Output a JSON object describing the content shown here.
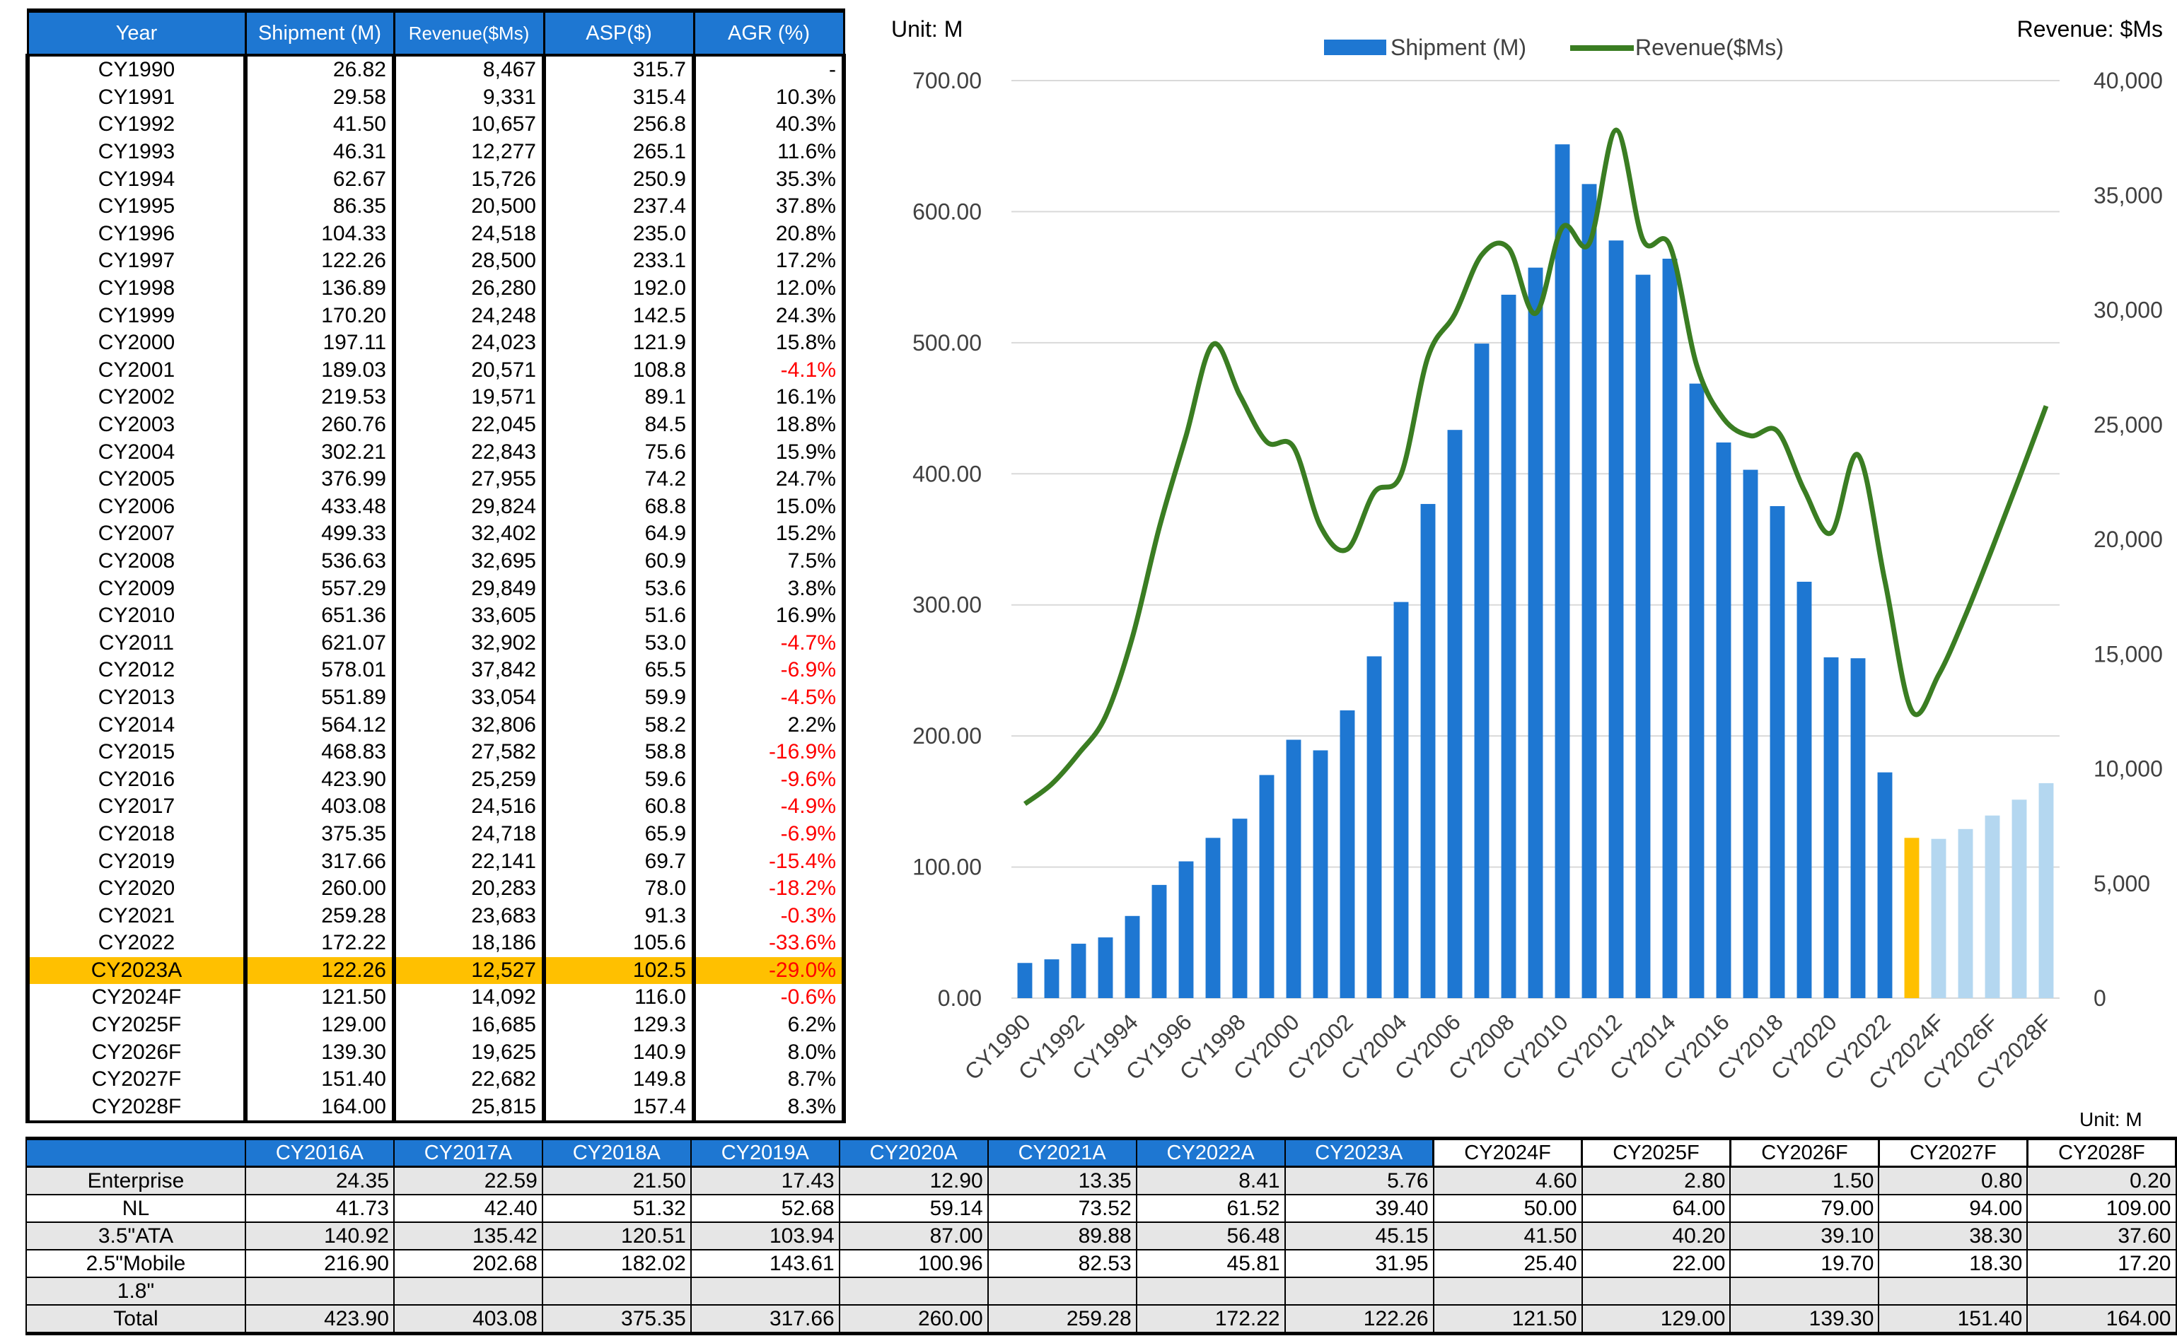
{
  "main_table": {
    "headers": [
      "Year",
      "Shipment (M)",
      "Revenue($Ms)",
      "ASP($)",
      "AGR (%)"
    ],
    "rows": [
      [
        "CY1990",
        "26.82",
        "8,467",
        "315.7",
        "-"
      ],
      [
        "CY1991",
        "29.58",
        "9,331",
        "315.4",
        "10.3%"
      ],
      [
        "CY1992",
        "41.50",
        "10,657",
        "256.8",
        "40.3%"
      ],
      [
        "CY1993",
        "46.31",
        "12,277",
        "265.1",
        "11.6%"
      ],
      [
        "CY1994",
        "62.67",
        "15,726",
        "250.9",
        "35.3%"
      ],
      [
        "CY1995",
        "86.35",
        "20,500",
        "237.4",
        "37.8%"
      ],
      [
        "CY1996",
        "104.33",
        "24,518",
        "235.0",
        "20.8%"
      ],
      [
        "CY1997",
        "122.26",
        "28,500",
        "233.1",
        "17.2%"
      ],
      [
        "CY1998",
        "136.89",
        "26,280",
        "192.0",
        "12.0%"
      ],
      [
        "CY1999",
        "170.20",
        "24,248",
        "142.5",
        "24.3%"
      ],
      [
        "CY2000",
        "197.11",
        "24,023",
        "121.9",
        "15.8%"
      ],
      [
        "CY2001",
        "189.03",
        "20,571",
        "108.8",
        "-4.1%"
      ],
      [
        "CY2002",
        "219.53",
        "19,571",
        "89.1",
        "16.1%"
      ],
      [
        "CY2003",
        "260.76",
        "22,045",
        "84.5",
        "18.8%"
      ],
      [
        "CY2004",
        "302.21",
        "22,843",
        "75.6",
        "15.9%"
      ],
      [
        "CY2005",
        "376.99",
        "27,955",
        "74.2",
        "24.7%"
      ],
      [
        "CY2006",
        "433.48",
        "29,824",
        "68.8",
        "15.0%"
      ],
      [
        "CY2007",
        "499.33",
        "32,402",
        "64.9",
        "15.2%"
      ],
      [
        "CY2008",
        "536.63",
        "32,695",
        "60.9",
        "7.5%"
      ],
      [
        "CY2009",
        "557.29",
        "29,849",
        "53.6",
        "3.8%"
      ],
      [
        "CY2010",
        "651.36",
        "33,605",
        "51.6",
        "16.9%"
      ],
      [
        "CY2011",
        "621.07",
        "32,902",
        "53.0",
        "-4.7%"
      ],
      [
        "CY2012",
        "578.01",
        "37,842",
        "65.5",
        "-6.9%"
      ],
      [
        "CY2013",
        "551.89",
        "33,054",
        "59.9",
        "-4.5%"
      ],
      [
        "CY2014",
        "564.12",
        "32,806",
        "58.2",
        "2.2%"
      ],
      [
        "CY2015",
        "468.83",
        "27,582",
        "58.8",
        "-16.9%"
      ],
      [
        "CY2016",
        "423.90",
        "25,259",
        "59.6",
        "-9.6%"
      ],
      [
        "CY2017",
        "403.08",
        "24,516",
        "60.8",
        "-4.9%"
      ],
      [
        "CY2018",
        "375.35",
        "24,718",
        "65.9",
        "-6.9%"
      ],
      [
        "CY2019",
        "317.66",
        "22,141",
        "69.7",
        "-15.4%"
      ],
      [
        "CY2020",
        "260.00",
        "20,283",
        "78.0",
        "-18.2%"
      ],
      [
        "CY2021",
        "259.28",
        "23,683",
        "91.3",
        "-0.3%"
      ],
      [
        "CY2022",
        "172.22",
        "18,186",
        "105.6",
        "-33.6%"
      ],
      [
        "CY2023A",
        "122.26",
        "12,527",
        "102.5",
        "-29.0%"
      ],
      [
        "CY2024F",
        "121.50",
        "14,092",
        "116.0",
        "-0.6%"
      ],
      [
        "CY2025F",
        "129.00",
        "16,685",
        "129.3",
        "6.2%"
      ],
      [
        "CY2026F",
        "139.30",
        "19,625",
        "140.9",
        "8.0%"
      ],
      [
        "CY2027F",
        "151.40",
        "22,682",
        "149.8",
        "8.7%"
      ],
      [
        "CY2028F",
        "164.00",
        "25,815",
        "157.4",
        "8.3%"
      ]
    ],
    "highlight_row": "CY2023A",
    "colors": {
      "header_bg": "#1e77d2",
      "highlight_bg": "#ffc000",
      "negative_text": "#ff0000"
    }
  },
  "chart_data": {
    "type": "bar",
    "left_unit_label": "Unit: M",
    "right_unit_label": "Revenue: $Ms",
    "legend": {
      "placement": "top-center"
    },
    "categories": [
      "CY1990",
      "CY1991",
      "CY1992",
      "CY1993",
      "CY1994",
      "CY1995",
      "CY1996",
      "CY1997",
      "CY1998",
      "CY1999",
      "CY2000",
      "CY2001",
      "CY2002",
      "CY2003",
      "CY2004",
      "CY2005",
      "CY2006",
      "CY2007",
      "CY2008",
      "CY2009",
      "CY2010",
      "CY2011",
      "CY2012",
      "CY2013",
      "CY2014",
      "CY2015",
      "CY2016",
      "CY2017",
      "CY2018",
      "CY2019",
      "CY2020",
      "CY2021",
      "CY2022",
      "CY2023A",
      "CY2024F",
      "CY2025F",
      "CY2026F",
      "CY2027F",
      "CY2028F"
    ],
    "x_tick_labels": [
      "CY1990",
      "CY1992",
      "CY1994",
      "CY1996",
      "CY1998",
      "CY2000",
      "CY2002",
      "CY2004",
      "CY2006",
      "CY2008",
      "CY2010",
      "CY2012",
      "CY2014",
      "CY2016",
      "CY2018",
      "CY2020",
      "CY2022",
      "CY2024F",
      "CY2026F",
      "CY2028F"
    ],
    "series": [
      {
        "name": "Shipment (M)",
        "type": "bar",
        "axis": "left",
        "values": [
          26.82,
          29.58,
          41.5,
          46.31,
          62.67,
          86.35,
          104.33,
          122.26,
          136.89,
          170.2,
          197.11,
          189.03,
          219.53,
          260.76,
          302.21,
          376.99,
          433.48,
          499.33,
          536.63,
          557.29,
          651.36,
          621.07,
          578.01,
          551.89,
          564.12,
          468.83,
          423.9,
          403.08,
          375.35,
          317.66,
          260.0,
          259.28,
          172.22,
          122.26,
          121.5,
          129.0,
          139.3,
          151.4,
          164.0
        ],
        "color": "#1e77d2",
        "highlight_color": "#ffc000",
        "forecast_color": "#b4d7f0"
      },
      {
        "name": "Revenue($Ms)",
        "type": "line",
        "axis": "right",
        "values": [
          8467,
          9331,
          10657,
          12277,
          15726,
          20500,
          24518,
          28500,
          26280,
          24248,
          24023,
          20571,
          19571,
          22045,
          22843,
          27955,
          29824,
          32402,
          32695,
          29849,
          33605,
          32902,
          37842,
          33054,
          32806,
          27582,
          25259,
          24516,
          24718,
          22141,
          20283,
          23683,
          18186,
          12527,
          14092,
          16685,
          19625,
          22682,
          25815
        ],
        "color": "#3a7d22"
      }
    ],
    "left_axis": {
      "ylim": [
        0,
        700
      ],
      "ticks": [
        "0.00",
        "100.00",
        "200.00",
        "300.00",
        "400.00",
        "500.00",
        "600.00",
        "700.00"
      ]
    },
    "right_axis": {
      "ylim": [
        0,
        40000
      ],
      "ticks": [
        "0",
        "5,000",
        "10,000",
        "15,000",
        "20,000",
        "25,000",
        "30,000",
        "35,000",
        "40,000"
      ]
    },
    "grid": true
  },
  "bottom_table": {
    "unit": "Unit: M",
    "columns": [
      "CY2016A",
      "CY2017A",
      "CY2018A",
      "CY2019A",
      "CY2020A",
      "CY2021A",
      "CY2022A",
      "CY2023A",
      "CY2024F",
      "CY2025F",
      "CY2026F",
      "CY2027F",
      "CY2028F"
    ],
    "rows": [
      {
        "label": "Enterprise",
        "values": [
          "24.35",
          "22.59",
          "21.50",
          "17.43",
          "12.90",
          "13.35",
          "8.41",
          "5.76",
          "4.60",
          "2.80",
          "1.50",
          "0.80",
          "0.20"
        ]
      },
      {
        "label": "NL",
        "values": [
          "41.73",
          "42.40",
          "51.32",
          "52.68",
          "59.14",
          "73.52",
          "61.52",
          "39.40",
          "50.00",
          "64.00",
          "79.00",
          "94.00",
          "109.00"
        ]
      },
      {
        "label": "3.5\"ATA",
        "values": [
          "140.92",
          "135.42",
          "120.51",
          "103.94",
          "87.00",
          "89.88",
          "56.48",
          "45.15",
          "41.50",
          "40.20",
          "39.10",
          "38.30",
          "37.60"
        ]
      },
      {
        "label": "2.5\"Mobile",
        "values": [
          "216.90",
          "202.68",
          "182.02",
          "143.61",
          "100.96",
          "82.53",
          "45.81",
          "31.95",
          "25.40",
          "22.00",
          "19.70",
          "18.30",
          "17.20"
        ]
      },
      {
        "label": "1.8\"",
        "values": [
          "",
          "",
          "",
          "",
          "",
          "",
          "",
          "",
          "",
          "",
          "",
          "",
          ""
        ]
      },
      {
        "label": "Total",
        "values": [
          "423.90",
          "403.08",
          "375.35",
          "317.66",
          "260.00",
          "259.28",
          "172.22",
          "122.26",
          "121.50",
          "129.00",
          "139.30",
          "151.40",
          "164.00"
        ]
      }
    ]
  }
}
